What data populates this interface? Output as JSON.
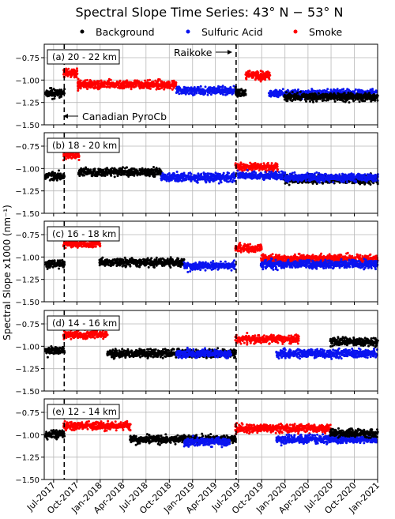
{
  "chart_data": {
    "type": "scatter",
    "title": "Spectral Slope Time Series: 43° N − 53° N",
    "ylabel": "Spectral Slope x1000 (nm⁻¹)",
    "ylim": [
      -1.5,
      -0.6
    ],
    "yticks": [
      -1.5,
      -1.25,
      -1.0,
      -0.75
    ],
    "yticklabels": [
      "−1.50",
      "−1.25",
      "−1.00",
      "−0.75"
    ],
    "x_range": [
      "2017-05-25",
      "2021-01-01"
    ],
    "xticks": [
      "2017-07-01",
      "2017-10-01",
      "2018-01-01",
      "2018-04-01",
      "2018-07-01",
      "2018-10-01",
      "2019-01-01",
      "2019-04-01",
      "2019-07-01",
      "2019-10-01",
      "2020-01-01",
      "2020-04-01",
      "2020-07-01",
      "2020-10-01",
      "2021-01-01"
    ],
    "xticklabels": [
      "Jul-2017",
      "Oct-2017",
      "Jan-2018",
      "Apr-2018",
      "Jul-2018",
      "Oct-2018",
      "Jan-2019",
      "Apr-2019",
      "Jul-2019",
      "Oct-2019",
      "Jan-2020",
      "Apr-2020",
      "Jul-2020",
      "Oct-2020",
      "Jan-2021"
    ],
    "grid": true,
    "legend_position": "top",
    "series": [
      {
        "name": "Background",
        "color": "#000000"
      },
      {
        "name": "Sulfuric Acid",
        "color": "#0a14f0"
      },
      {
        "name": "Smoke",
        "color": "#ff0000"
      }
    ],
    "events": [
      {
        "label": "Canadian PyroCb",
        "date": "2017-08-12"
      },
      {
        "label": "Raikoke",
        "date": "2019-06-22"
      }
    ],
    "panels": [
      {
        "label": "(a)  20 - 22 km",
        "segments": [
          {
            "start": "2017-06-01",
            "end": "2017-08-10",
            "series": "Background",
            "mean": -1.15
          },
          {
            "start": "2017-08-12",
            "end": "2017-10-05",
            "series": "Smoke",
            "mean": -0.92
          },
          {
            "start": "2017-10-05",
            "end": "2018-10-31",
            "series": "Smoke",
            "mean": -1.05
          },
          {
            "start": "2018-11-01",
            "end": "2019-06-21",
            "series": "Sulfuric Acid",
            "mean": -1.12
          },
          {
            "start": "2019-06-22",
            "end": "2019-07-31",
            "series": "Background",
            "mean": -1.14
          },
          {
            "start": "2019-08-01",
            "end": "2019-10-31",
            "series": "Smoke",
            "mean": -0.95
          },
          {
            "start": "2019-11-01",
            "end": "2020-12-31",
            "series": "Sulfuric Acid",
            "mean": -1.15
          },
          {
            "start": "2020-01-01",
            "end": "2020-12-31",
            "series": "Background",
            "mean": -1.19
          }
        ]
      },
      {
        "label": "(b)  18 - 20 km",
        "segments": [
          {
            "start": "2017-06-01",
            "end": "2017-08-10",
            "series": "Background",
            "mean": -1.08
          },
          {
            "start": "2017-08-12",
            "end": "2017-10-10",
            "series": "Smoke",
            "mean": -0.85
          },
          {
            "start": "2017-10-10",
            "end": "2018-08-31",
            "series": "Background",
            "mean": -1.04
          },
          {
            "start": "2018-09-01",
            "end": "2019-06-21",
            "series": "Sulfuric Acid",
            "mean": -1.1
          },
          {
            "start": "2019-06-22",
            "end": "2019-11-30",
            "series": "Smoke",
            "mean": -0.98
          },
          {
            "start": "2019-07-01",
            "end": "2019-12-31",
            "series": "Sulfuric Acid",
            "mean": -1.08
          },
          {
            "start": "2020-01-01",
            "end": "2020-12-31",
            "series": "Background",
            "mean": -1.12
          },
          {
            "start": "2020-01-01",
            "end": "2020-12-31",
            "series": "Sulfuric Acid",
            "mean": -1.1
          }
        ]
      },
      {
        "label": "(c)  16 - 18 km",
        "segments": [
          {
            "start": "2017-06-01",
            "end": "2017-08-10",
            "series": "Background",
            "mean": -1.08
          },
          {
            "start": "2017-08-12",
            "end": "2017-12-31",
            "series": "Smoke",
            "mean": -0.85
          },
          {
            "start": "2018-01-01",
            "end": "2018-11-30",
            "series": "Background",
            "mean": -1.06
          },
          {
            "start": "2018-12-01",
            "end": "2019-06-21",
            "series": "Sulfuric Acid",
            "mean": -1.1
          },
          {
            "start": "2019-06-22",
            "end": "2019-09-30",
            "series": "Smoke",
            "mean": -0.9
          },
          {
            "start": "2019-10-01",
            "end": "2020-12-31",
            "series": "Smoke",
            "mean": -1.02
          },
          {
            "start": "2019-10-01",
            "end": "2020-12-31",
            "series": "Sulfuric Acid",
            "mean": -1.08
          }
        ]
      },
      {
        "label": "(d)  14 - 16 km",
        "segments": [
          {
            "start": "2017-06-01",
            "end": "2017-08-10",
            "series": "Background",
            "mean": -1.05
          },
          {
            "start": "2017-08-12",
            "end": "2018-01-31",
            "series": "Smoke",
            "mean": -0.87
          },
          {
            "start": "2018-02-01",
            "end": "2019-06-21",
            "series": "Background",
            "mean": -1.08
          },
          {
            "start": "2018-11-01",
            "end": "2019-05-31",
            "series": "Sulfuric Acid",
            "mean": -1.08
          },
          {
            "start": "2019-06-22",
            "end": "2020-02-28",
            "series": "Smoke",
            "mean": -0.92
          },
          {
            "start": "2019-12-01",
            "end": "2020-12-31",
            "series": "Sulfuric Acid",
            "mean": -1.08
          },
          {
            "start": "2020-07-01",
            "end": "2020-12-31",
            "series": "Background",
            "mean": -0.95
          }
        ]
      },
      {
        "label": "(e)  12 - 14 km",
        "segments": [
          {
            "start": "2017-06-01",
            "end": "2017-08-10",
            "series": "Background",
            "mean": -1.0
          },
          {
            "start": "2017-08-12",
            "end": "2018-04-30",
            "series": "Smoke",
            "mean": -0.9
          },
          {
            "start": "2018-05-01",
            "end": "2019-06-21",
            "series": "Background",
            "mean": -1.05
          },
          {
            "start": "2018-12-01",
            "end": "2019-05-31",
            "series": "Sulfuric Acid",
            "mean": -1.08
          },
          {
            "start": "2019-06-22",
            "end": "2020-06-30",
            "series": "Smoke",
            "mean": -0.93
          },
          {
            "start": "2019-12-01",
            "end": "2020-12-31",
            "series": "Sulfuric Acid",
            "mean": -1.05
          },
          {
            "start": "2020-07-01",
            "end": "2020-12-31",
            "series": "Background",
            "mean": -0.98
          }
        ]
      }
    ]
  }
}
